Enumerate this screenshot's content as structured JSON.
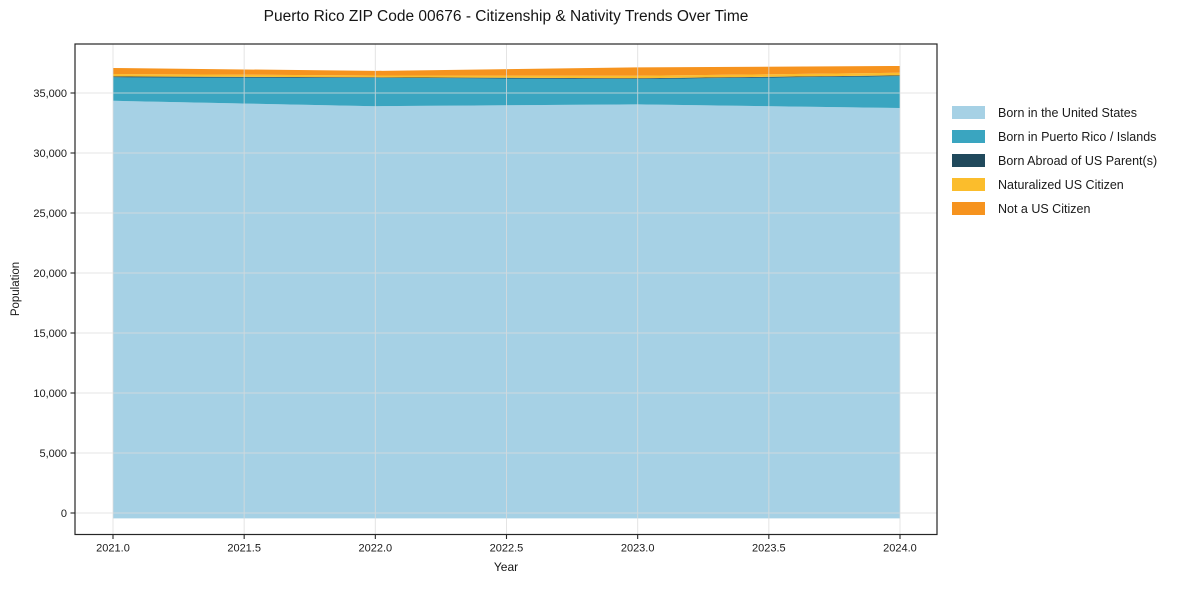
{
  "title": "Puerto Rico ZIP Code 00676 - Citizenship & Nativity Trends Over Time",
  "axes": {
    "x_label": "Year",
    "y_label": "Population",
    "x_ticks": [
      {
        "value": 2021.0,
        "label": "2021.0"
      },
      {
        "value": 2021.5,
        "label": "2021.5"
      },
      {
        "value": 2022.0,
        "label": "2022.0"
      },
      {
        "value": 2022.5,
        "label": "2022.5"
      },
      {
        "value": 2023.0,
        "label": "2023.0"
      },
      {
        "value": 2023.5,
        "label": "2023.5"
      },
      {
        "value": 2024.0,
        "label": "2024.0"
      }
    ],
    "y_ticks": [
      {
        "value": 0,
        "label": "0"
      },
      {
        "value": 5000,
        "label": "5,000"
      },
      {
        "value": 10000,
        "label": "10,000"
      },
      {
        "value": 15000,
        "label": "15,000"
      },
      {
        "value": 20000,
        "label": "20,000"
      },
      {
        "value": 25000,
        "label": "25,000"
      },
      {
        "value": 30000,
        "label": "30,000"
      },
      {
        "value": 35000,
        "label": "35,000"
      }
    ]
  },
  "colors": {
    "born_us": "#a6d1e5",
    "born_pr": "#3aa5c0",
    "born_abroad": "#20495c",
    "naturalized": "#fbbd2c",
    "not_citizen": "#f6931e",
    "grid": "#dcdcdc",
    "spine": "#262626",
    "tick_text": "#1a1a1a"
  },
  "legend": {
    "entries": [
      {
        "label": "Born in the United States",
        "color": "#a6d1e5"
      },
      {
        "label": "Born in Puerto Rico / Islands",
        "color": "#3aa5c0"
      },
      {
        "label": "Born Abroad of US Parent(s)",
        "color": "#20495c"
      },
      {
        "label": "Naturalized US Citizen",
        "color": "#fbbd2c"
      },
      {
        "label": "Not a US Citizen",
        "color": "#f6931e"
      }
    ]
  },
  "chart_data": {
    "type": "area",
    "stacked": true,
    "title": "Puerto Rico ZIP Code 00676 - Citizenship & Nativity Trends Over Time",
    "xlabel": "Year",
    "ylabel": "Population",
    "x": [
      2021,
      2022,
      2023,
      2024
    ],
    "series": [
      {
        "name": "Born in the United States",
        "color": "#a6d1e5",
        "values": [
          34350,
          33900,
          34050,
          33750
        ]
      },
      {
        "name": "Born in Puerto Rico / Islands",
        "color": "#3aa5c0",
        "values": [
          1960,
          2360,
          2120,
          2660
        ]
      },
      {
        "name": "Born Abroad of US Parent(s)",
        "color": "#20495c",
        "values": [
          70,
          50,
          60,
          60
        ]
      },
      {
        "name": "Naturalized US Citizen",
        "color": "#fbbd2c",
        "values": [
          200,
          150,
          200,
          220
        ]
      },
      {
        "name": "Not a US Citizen",
        "color": "#f6931e",
        "values": [
          500,
          380,
          700,
          560
        ]
      }
    ],
    "stack_totals": [
      37080,
      36840,
      37130,
      37250
    ],
    "xlim": [
      2020.855,
      2024.14
    ],
    "ylim": [
      -1750,
      39080
    ],
    "grid": true,
    "legend_position": "right-outside"
  }
}
